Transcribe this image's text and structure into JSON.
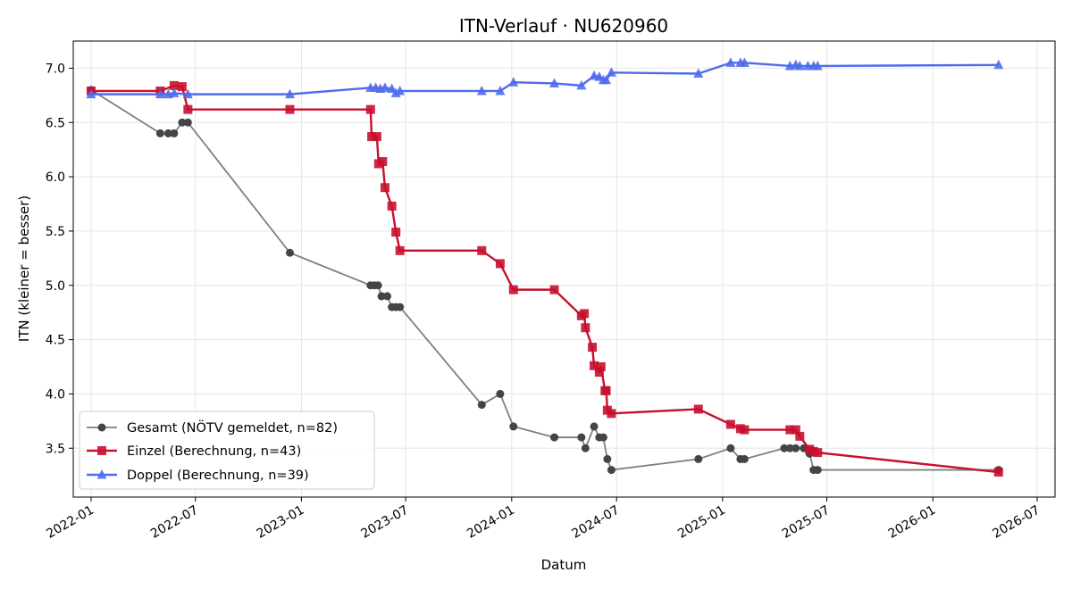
{
  "chart_data": {
    "type": "line",
    "title": "ITN-Verlauf · NU620960",
    "xlabel": "Datum",
    "ylabel": "ITN  (kleiner = besser)",
    "x_is_date": true,
    "xlim": [
      "2021-12-01",
      "2026-08-01"
    ],
    "ylim": [
      3.05,
      7.25
    ],
    "x_ticks": [
      "2022-01",
      "2022-07",
      "2023-01",
      "2023-07",
      "2024-01",
      "2024-07",
      "2025-01",
      "2025-07",
      "2026-01",
      "2026-07"
    ],
    "y_ticks": [
      3.5,
      4.0,
      4.5,
      5.0,
      5.5,
      6.0,
      6.5,
      7.0
    ],
    "grid": true,
    "legend_position": "lower-left",
    "series": [
      {
        "name": "Gesamt (NÖTV gemeldet, n=82)",
        "color": "#444444",
        "line_color": "#7f7f7f",
        "marker": "circle",
        "points": [
          [
            "2022-01-01",
            6.8
          ],
          [
            "2022-05-01",
            6.4
          ],
          [
            "2022-05-15",
            6.4
          ],
          [
            "2022-05-25",
            6.4
          ],
          [
            "2022-06-08",
            6.5
          ],
          [
            "2022-06-18",
            6.5
          ],
          [
            "2022-12-12",
            5.3
          ],
          [
            "2023-05-01",
            5.0
          ],
          [
            "2023-05-08",
            5.0
          ],
          [
            "2023-05-14",
            5.0
          ],
          [
            "2023-05-20",
            4.9
          ],
          [
            "2023-05-30",
            4.9
          ],
          [
            "2023-06-07",
            4.8
          ],
          [
            "2023-06-14",
            4.8
          ],
          [
            "2023-06-21",
            4.8
          ],
          [
            "2023-11-10",
            3.9
          ],
          [
            "2023-12-12",
            4.0
          ],
          [
            "2024-01-04",
            3.7
          ],
          [
            "2024-03-15",
            3.6
          ],
          [
            "2024-05-01",
            3.6
          ],
          [
            "2024-05-08",
            3.5
          ],
          [
            "2024-05-23",
            3.7
          ],
          [
            "2024-06-01",
            3.6
          ],
          [
            "2024-06-08",
            3.6
          ],
          [
            "2024-06-15",
            3.4
          ],
          [
            "2024-06-22",
            3.3
          ],
          [
            "2024-11-20",
            3.4
          ],
          [
            "2025-01-15",
            3.5
          ],
          [
            "2025-02-01",
            3.4
          ],
          [
            "2025-02-08",
            3.4
          ],
          [
            "2025-04-18",
            3.5
          ],
          [
            "2025-04-28",
            3.5
          ],
          [
            "2025-05-08",
            3.5
          ],
          [
            "2025-05-22",
            3.5
          ],
          [
            "2025-06-01",
            3.45
          ],
          [
            "2025-06-08",
            3.3
          ],
          [
            "2025-06-15",
            3.3
          ],
          [
            "2026-04-25",
            3.3
          ]
        ]
      },
      {
        "name": "Einzel (Berechnung, n=43)",
        "color": "#c8102e",
        "line_color": "#c8102e",
        "marker": "square",
        "points": [
          [
            "2022-01-01",
            6.79
          ],
          [
            "2022-05-01",
            6.79
          ],
          [
            "2022-05-25",
            6.84
          ],
          [
            "2022-06-08",
            6.83
          ],
          [
            "2022-06-18",
            6.62
          ],
          [
            "2022-12-12",
            6.62
          ],
          [
            "2023-05-01",
            6.62
          ],
          [
            "2023-05-03",
            6.37
          ],
          [
            "2023-05-12",
            6.37
          ],
          [
            "2023-05-15",
            6.12
          ],
          [
            "2023-05-22",
            6.14
          ],
          [
            "2023-05-26",
            5.9
          ],
          [
            "2023-06-07",
            5.73
          ],
          [
            "2023-06-14",
            5.49
          ],
          [
            "2023-06-21",
            5.32
          ],
          [
            "2023-11-10",
            5.32
          ],
          [
            "2023-12-12",
            5.2
          ],
          [
            "2024-01-04",
            4.96
          ],
          [
            "2024-03-15",
            4.96
          ],
          [
            "2024-05-01",
            4.72
          ],
          [
            "2024-05-06",
            4.74
          ],
          [
            "2024-05-08",
            4.61
          ],
          [
            "2024-05-20",
            4.43
          ],
          [
            "2024-05-23",
            4.26
          ],
          [
            "2024-06-01",
            4.2
          ],
          [
            "2024-06-04",
            4.25
          ],
          [
            "2024-06-11",
            4.03
          ],
          [
            "2024-06-13",
            4.03
          ],
          [
            "2024-06-15",
            3.85
          ],
          [
            "2024-06-22",
            3.82
          ],
          [
            "2024-11-20",
            3.86
          ],
          [
            "2025-01-15",
            3.72
          ],
          [
            "2025-02-01",
            3.68
          ],
          [
            "2025-02-08",
            3.67
          ],
          [
            "2025-04-28",
            3.67
          ],
          [
            "2025-05-08",
            3.67
          ],
          [
            "2025-05-15",
            3.61
          ],
          [
            "2025-06-01",
            3.49
          ],
          [
            "2025-06-08",
            3.47
          ],
          [
            "2025-06-15",
            3.46
          ],
          [
            "2026-04-25",
            3.28
          ]
        ]
      },
      {
        "name": "Doppel (Berechnung, n=39)",
        "color": "#4f6bed",
        "line_color": "#4f6bed",
        "marker": "triangle",
        "points": [
          [
            "2022-01-01",
            6.76
          ],
          [
            "2022-05-01",
            6.76
          ],
          [
            "2022-05-15",
            6.76
          ],
          [
            "2022-05-25",
            6.77
          ],
          [
            "2022-06-18",
            6.76
          ],
          [
            "2022-12-12",
            6.76
          ],
          [
            "2023-05-01",
            6.82
          ],
          [
            "2023-05-10",
            6.82
          ],
          [
            "2023-05-18",
            6.81
          ],
          [
            "2023-05-26",
            6.82
          ],
          [
            "2023-06-07",
            6.81
          ],
          [
            "2023-06-14",
            6.77
          ],
          [
            "2023-06-21",
            6.79
          ],
          [
            "2023-11-10",
            6.79
          ],
          [
            "2023-12-12",
            6.79
          ],
          [
            "2024-01-04",
            6.87
          ],
          [
            "2024-03-15",
            6.86
          ],
          [
            "2024-05-01",
            6.84
          ],
          [
            "2024-05-23",
            6.93
          ],
          [
            "2024-06-01",
            6.92
          ],
          [
            "2024-06-08",
            6.89
          ],
          [
            "2024-06-13",
            6.89
          ],
          [
            "2024-06-22",
            6.96
          ],
          [
            "2024-11-20",
            6.95
          ],
          [
            "2025-01-15",
            7.05
          ],
          [
            "2025-02-01",
            7.05
          ],
          [
            "2025-02-08",
            7.05
          ],
          [
            "2025-04-28",
            7.02
          ],
          [
            "2025-05-08",
            7.03
          ],
          [
            "2025-05-15",
            7.02
          ],
          [
            "2025-05-29",
            7.02
          ],
          [
            "2025-06-08",
            7.02
          ],
          [
            "2025-06-15",
            7.02
          ],
          [
            "2026-04-25",
            7.03
          ]
        ]
      }
    ]
  }
}
